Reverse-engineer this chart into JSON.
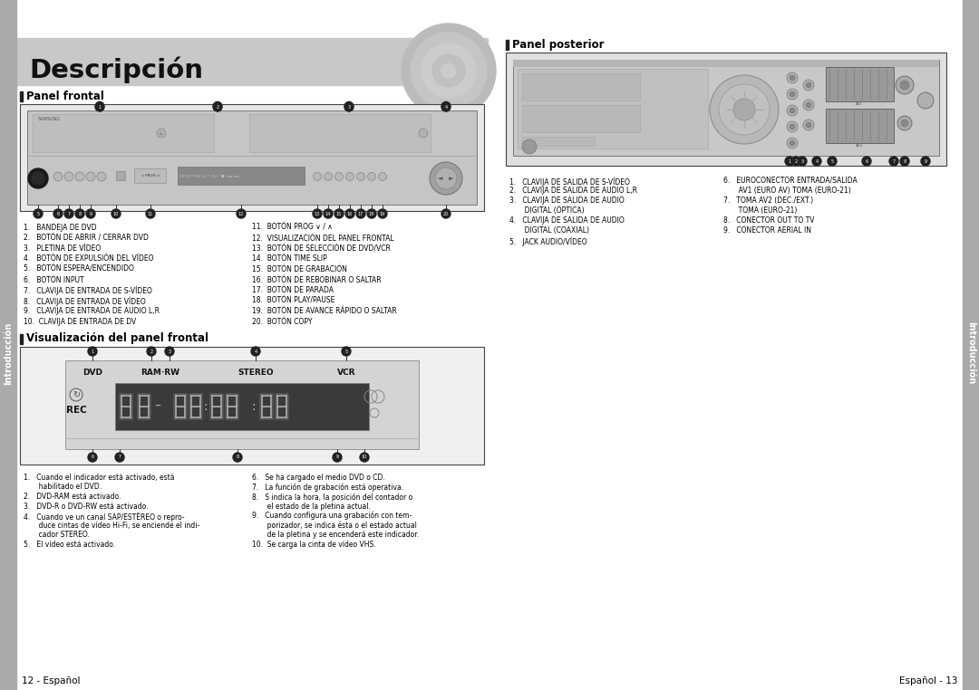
{
  "page_bg": "#ffffff",
  "header_bg": "#c8c8c8",
  "header_text": "Descripción",
  "left_sidebar_bg": "#999999",
  "right_sidebar_bg": "#999999",
  "sidebar_text": "Introducción",
  "section_bar_color": "#222222",
  "panel_frontal_title": "Panel frontal",
  "panel_posterior_title": "Panel posterior",
  "visualizacion_title": "Visualización del panel frontal",
  "front_panel_items_left": [
    "1.   BANDEJA DE DVD",
    "2.   BOTÓN DE ABRIR / CERRAR DVD",
    "3.   PLETINA DE VÍDEO",
    "4.   BOTÓN DE EXPULSIÓN DEL VÍDEO",
    "5.   BOTÓN ESPERA/ENCENDIDO",
    "6.   BOTÓN INPUT",
    "7.   CLAVIJA DE ENTRADA DE S-VÍDEO",
    "8.   CLAVIJA DE ENTRADA DE VÍDEO",
    "9.   CLAVIJA DE ENTRADA DE AUDIO L,R",
    "10.  CLAVIJA DE ENTRADA DE DV"
  ],
  "front_panel_items_right": [
    "11.  BOTÓN PROG ∨ / ∧",
    "12.  VISUALIZACIÓN DEL PANEL FRONTAL",
    "13.  BOTÓN DE SELECCIÓN DE DVD/VCR",
    "14.  BOTÓN TIME SLIP",
    "15.  BOTÓN DE GRABACIÓN",
    "16.  BOTÓN DE REBOBINAR O SALTAR",
    "17.  BOTÓN DE PARADA",
    "18.  BOTÓN PLAY/PAUSE",
    "19.  BOTÓN DE AVANCE RÁPIDO O SALTAR",
    "20.  BOTÓN COPY"
  ],
  "rear_panel_items_left": [
    "1.   CLAVIJA DE SALIDA DE S-VÍDEO",
    "2.   CLAVIJA DE SALIDA DE AUDIO L,R",
    "3.   CLAVIJA DE SALIDA DE AUDIO",
    "       DIGITAL (ÓPTICA)",
    "4.   CLAVIJA DE SALIDA DE AUDIO",
    "       DIGITAL (COAXIAL)",
    "5.   JACK AUDIO/VÍDEO"
  ],
  "rear_panel_items_right": [
    "6.   EUROCONECTOR ENTRADA/SALIDA",
    "       AV1 (EURO AV) TOMA (EURO-21)",
    "7.   TOMA AV2 (DEC./EXT.)",
    "       TOMA (EURO-21)",
    "8.   CONECTOR OUT TO TV",
    "9.   CONECTOR AERIAL IN"
  ],
  "viz_items_left": [
    "1.   Cuando el indicador está activado, está",
    "       habilitado el DVD.",
    "2.   DVD-RAM está activado.",
    "3.   DVD-R o DVD-RW está activado.",
    "4.   Cuando ve un canal SAP/ESTÉREO o repro-",
    "       duce cintas de vídeo Hi-Fi, se enciende el indi-",
    "       cador STEREO.",
    "5.   El vídeo está activado."
  ],
  "viz_items_right": [
    "6.   Se ha cargado el medio DVD o CD.",
    "7.   La función de grabación está operativa.",
    "8.   S indica la hora, la posición del contador o",
    "       el estado de la pletina actual.",
    "9.   Cuando configura una grabación con tem-",
    "       porizador, se indica ésta o el estado actual",
    "       de la pletina y se encenderá este indicador.",
    "10.  Se carga la cinta de vídeo VHS."
  ],
  "footer_left": "12 - Español",
  "footer_right": "Español - 13",
  "dvd_display_labels": [
    "DVD",
    "RAM·RW",
    "STEREO",
    "VCR"
  ],
  "dvd_display_rec": "REC"
}
